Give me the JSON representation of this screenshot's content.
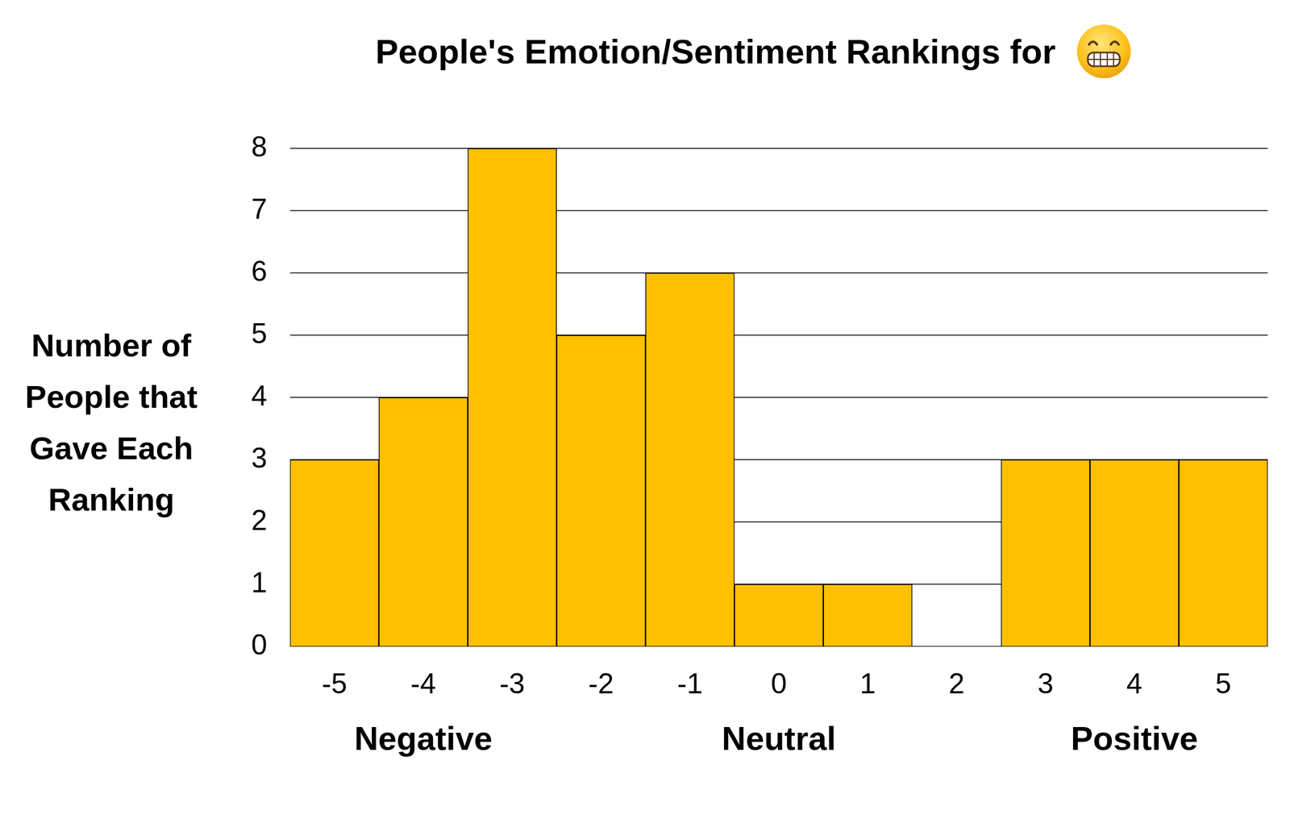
{
  "chart_data": {
    "type": "bar",
    "title": "People's Emotion/Sentiment Rankings for",
    "ylabel": "Number of People that Gave Each Ranking",
    "categories": [
      -5,
      -4,
      -3,
      -2,
      -1,
      0,
      1,
      2,
      3,
      4,
      5
    ],
    "values": [
      3,
      4,
      8,
      5,
      6,
      1,
      1,
      0,
      3,
      3,
      3
    ],
    "color": "#ffc000",
    "ylim": [
      0,
      8
    ],
    "yticks": [
      0,
      1,
      2,
      3,
      4,
      5,
      6,
      7,
      8
    ],
    "grid": true,
    "annotations": [
      {
        "text": "Negative",
        "x": -4
      },
      {
        "text": "Neutral",
        "x": 0
      },
      {
        "text": "Positive",
        "x": 4
      }
    ]
  }
}
